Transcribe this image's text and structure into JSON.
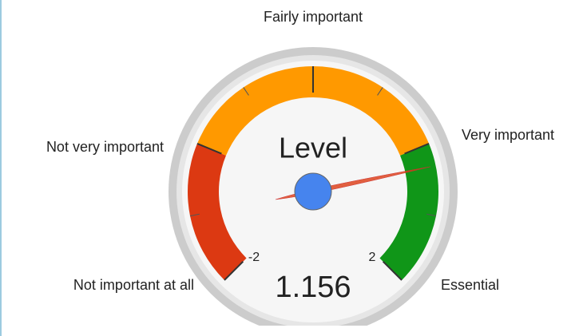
{
  "chart_data": {
    "type": "gauge",
    "title": "Level",
    "value": 1.156,
    "ylim": [
      -2,
      2
    ],
    "yticks": [
      -2,
      -1,
      0,
      1,
      2
    ],
    "minor_ticks": [
      -1.5,
      -0.5,
      0.5,
      1.5
    ],
    "categories": [
      "Not important at all",
      "Not very important",
      "Fairly important",
      "Very important",
      "Essential"
    ],
    "bands": [
      {
        "from": -2,
        "to": -1,
        "color": "#dc3912"
      },
      {
        "from": -1,
        "to": 1,
        "color": "#ff9900"
      },
      {
        "from": 1,
        "to": 2,
        "color": "#109618"
      }
    ],
    "needle_color": "#dc3912",
    "hub_color": "#4684ee"
  }
}
